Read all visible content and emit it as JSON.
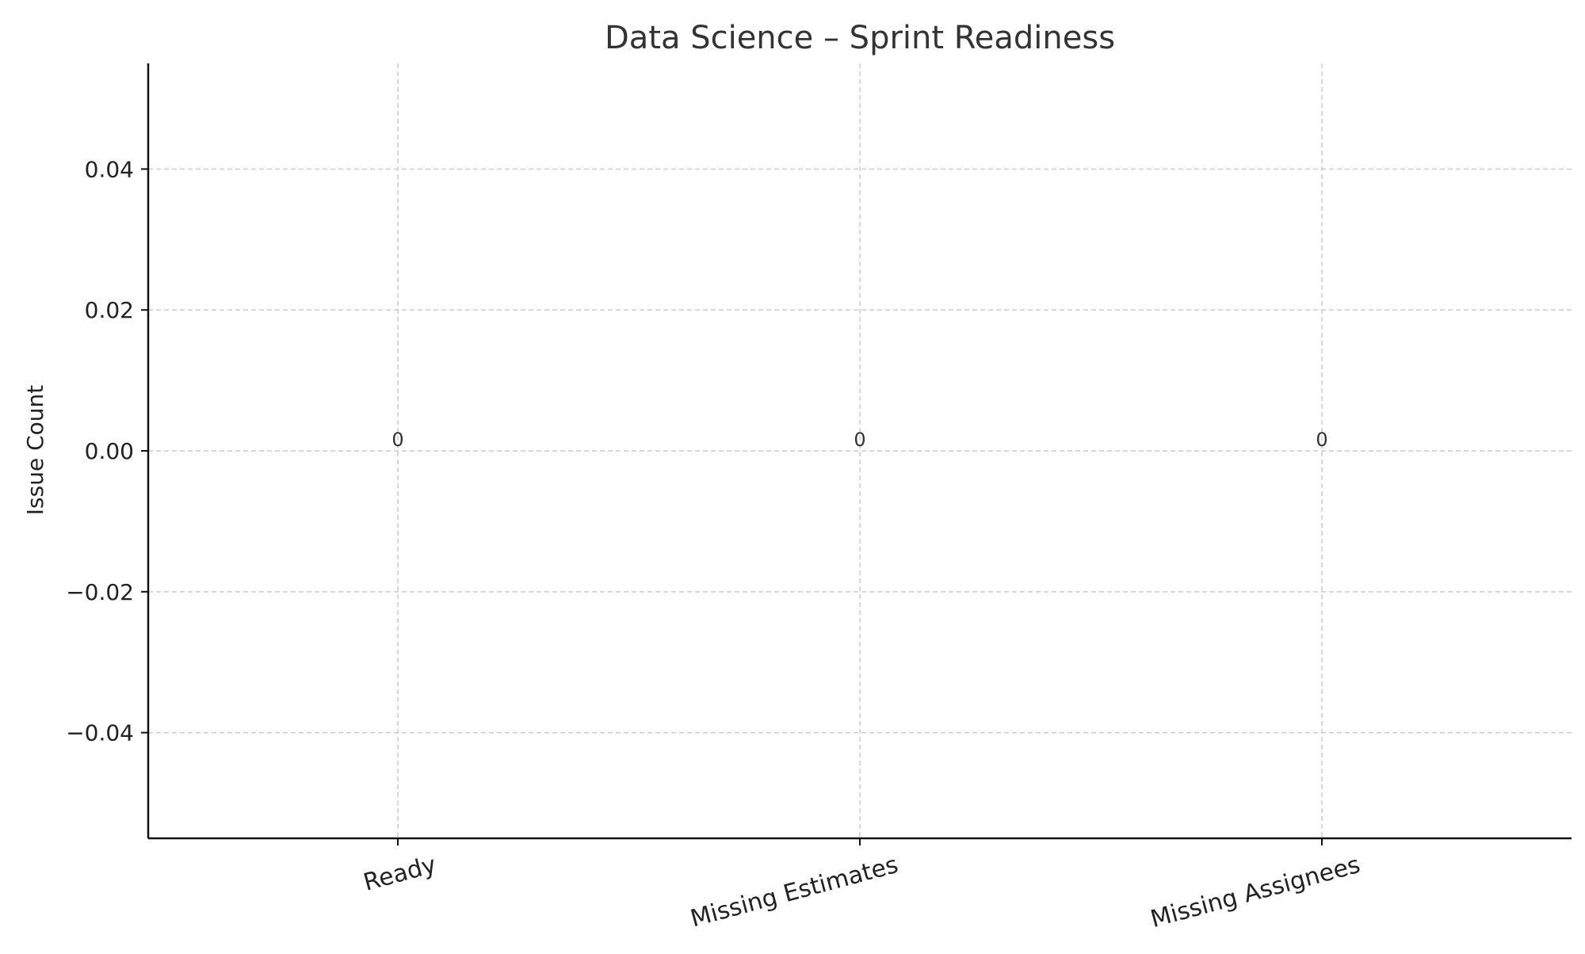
{
  "chart_data": {
    "type": "bar",
    "title": "Data Science – Sprint Readiness",
    "xlabel": "",
    "ylabel": "Issue Count",
    "categories": [
      "Ready",
      "Missing Estimates",
      "Missing Assignees"
    ],
    "values": [
      0,
      0,
      0
    ],
    "data_labels": [
      "0",
      "0",
      "0"
    ],
    "ylim": [
      -0.055,
      0.055
    ],
    "yticks": [
      0.04,
      0.02,
      0.0,
      -0.02,
      -0.04
    ],
    "ytick_labels": [
      "0.04",
      "0.02",
      "0.00",
      "−0.02",
      "−0.04"
    ],
    "grid": true,
    "legend": "none",
    "colors": {
      "grid": "#cccccc",
      "axis": "#111111",
      "text": "#222222",
      "title": "#333333"
    }
  }
}
